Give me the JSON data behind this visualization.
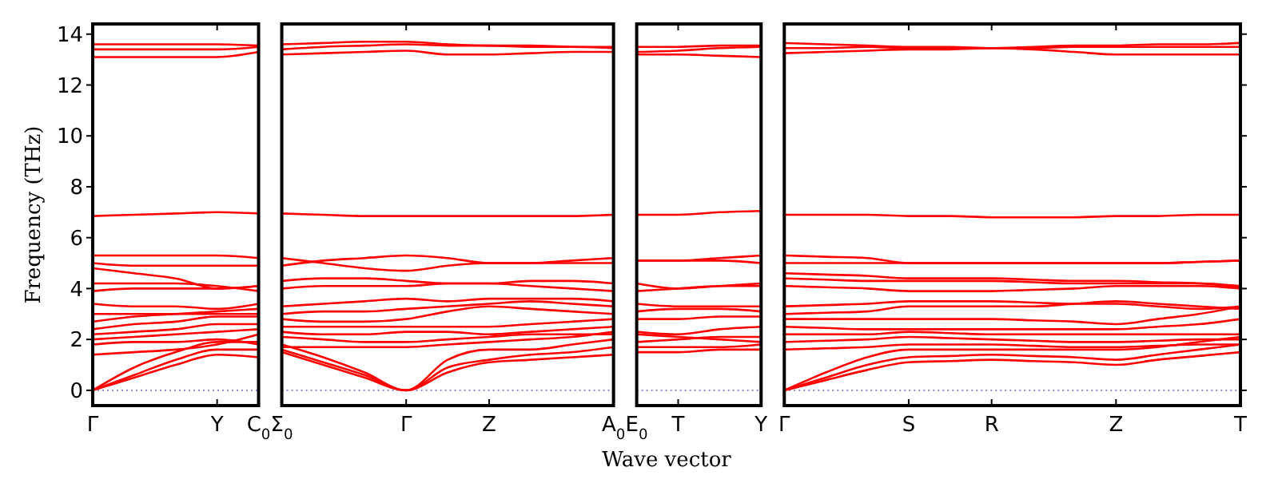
{
  "chart_data": [
    {
      "type": "line",
      "ylabel": "Frequency (THz)",
      "categories": [
        "Γ",
        null,
        null,
        "Y",
        "C$_{0}$"
      ],
      "ylim": [
        -0.6,
        14.4
      ],
      "yticks": [
        0,
        2,
        4,
        6,
        8,
        10,
        12,
        14
      ],
      "ref_lines": [
        {
          "axis": "y",
          "value": 0,
          "color": "#7f7fbf",
          "line_style": "dotted"
        }
      ],
      "series": [
        {
          "color": "#ff0000",
          "values": [
            0,
            0.5,
            1.0,
            1.4,
            1.3
          ]
        },
        {
          "color": "#ff0000",
          "values": [
            0,
            0.6,
            1.2,
            1.6,
            1.6
          ]
        },
        {
          "color": "#ff0000",
          "values": [
            0,
            0.9,
            1.5,
            1.9,
            1.9
          ]
        },
        {
          "color": "#ff0000",
          "values": [
            1.4,
            1.5,
            1.6,
            1.8,
            2.2
          ]
        },
        {
          "color": "#ff0000",
          "values": [
            1.8,
            1.9,
            1.9,
            2.0,
            1.8
          ]
        },
        {
          "color": "#ff0000",
          "values": [
            2.0,
            2.1,
            2.2,
            2.3,
            2.4
          ]
        },
        {
          "color": "#ff0000",
          "values": [
            2.2,
            2.3,
            2.4,
            2.6,
            2.6
          ]
        },
        {
          "color": "#ff0000",
          "values": [
            2.4,
            2.6,
            2.7,
            2.9,
            2.9
          ]
        },
        {
          "color": "#ff0000",
          "values": [
            2.7,
            2.9,
            3.0,
            3.1,
            3.2
          ]
        },
        {
          "color": "#ff0000",
          "values": [
            3.0,
            3.0,
            3.0,
            3.0,
            3.0
          ]
        },
        {
          "color": "#ff0000",
          "values": [
            3.4,
            3.3,
            3.3,
            3.2,
            3.4
          ]
        },
        {
          "color": "#ff0000",
          "values": [
            3.9,
            4.0,
            4.0,
            4.0,
            4.1
          ]
        },
        {
          "color": "#ff0000",
          "values": [
            4.2,
            4.2,
            4.2,
            4.1,
            3.9
          ]
        },
        {
          "color": "#ff0000",
          "values": [
            4.8,
            4.6,
            4.4,
            4.0,
            4.1
          ]
        },
        {
          "color": "#ff0000",
          "values": [
            5.0,
            4.9,
            4.9,
            4.9,
            4.9
          ]
        },
        {
          "color": "#ff0000",
          "values": [
            5.3,
            5.3,
            5.3,
            5.3,
            5.2
          ]
        },
        {
          "color": "#ff0000",
          "values": [
            6.85,
            6.9,
            6.95,
            7.0,
            6.95
          ]
        },
        {
          "color": "#ff0000",
          "values": [
            13.1,
            13.1,
            13.1,
            13.1,
            13.3
          ]
        },
        {
          "color": "#ff0000",
          "values": [
            13.4,
            13.4,
            13.4,
            13.4,
            13.5
          ]
        },
        {
          "color": "#ff0000",
          "values": [
            13.6,
            13.6,
            13.6,
            13.6,
            13.55
          ]
        }
      ]
    },
    {
      "type": "line",
      "xlabel": "Wave vector",
      "tick_labels": "x",
      "categories": [
        "Σ$_{0}$",
        null,
        null,
        "Γ",
        null,
        "Z",
        null,
        null,
        "A$_{0}$"
      ],
      "ylim": [
        -0.6,
        14.4
      ],
      "ref_lines": [
        {
          "axis": "y",
          "value": 0,
          "color": "#7f7fbf",
          "line_style": "dotted"
        }
      ],
      "series": [
        {
          "color": "#ff0000",
          "values": [
            1.5,
            1.0,
            0.5,
            0,
            0.7,
            1.1,
            1.2,
            1.3,
            1.4
          ]
        },
        {
          "color": "#ff0000",
          "values": [
            1.6,
            1.1,
            0.6,
            0,
            0.9,
            1.2,
            1.4,
            1.5,
            1.7
          ]
        },
        {
          "color": "#ff0000",
          "values": [
            1.8,
            1.3,
            0.7,
            0,
            1.2,
            1.6,
            1.6,
            1.8,
            2.0
          ]
        },
        {
          "color": "#ff0000",
          "values": [
            1.7,
            1.7,
            1.7,
            1.7,
            1.8,
            1.9,
            2.0,
            2.1,
            2.3
          ]
        },
        {
          "color": "#ff0000",
          "values": [
            2.1,
            2.0,
            1.9,
            1.9,
            2.0,
            2.1,
            2.2,
            2.2,
            2.2
          ]
        },
        {
          "color": "#ff0000",
          "values": [
            2.3,
            2.2,
            2.2,
            2.3,
            2.3,
            2.2,
            2.3,
            2.4,
            2.5
          ]
        },
        {
          "color": "#ff0000",
          "values": [
            2.5,
            2.5,
            2.5,
            2.5,
            2.5,
            2.5,
            2.6,
            2.7,
            2.8
          ]
        },
        {
          "color": "#ff0000",
          "values": [
            2.8,
            2.7,
            2.7,
            2.8,
            3.1,
            3.3,
            3.2,
            3.1,
            3.0
          ]
        },
        {
          "color": "#ff0000",
          "values": [
            3.0,
            3.1,
            3.1,
            3.2,
            3.3,
            3.4,
            3.5,
            3.4,
            3.3
          ]
        },
        {
          "color": "#ff0000",
          "values": [
            3.3,
            3.4,
            3.5,
            3.6,
            3.5,
            3.6,
            3.6,
            3.6,
            3.5
          ]
        },
        {
          "color": "#ff0000",
          "values": [
            4.0,
            4.1,
            4.1,
            4.1,
            4.2,
            4.2,
            4.1,
            4.0,
            3.9
          ]
        },
        {
          "color": "#ff0000",
          "values": [
            4.3,
            4.4,
            4.4,
            4.3,
            4.2,
            4.2,
            4.3,
            4.3,
            4.2
          ]
        },
        {
          "color": "#ff0000",
          "values": [
            5.2,
            5.0,
            4.8,
            4.7,
            4.9,
            5.0,
            5.0,
            5.0,
            5.0
          ]
        },
        {
          "color": "#ff0000",
          "values": [
            4.9,
            5.1,
            5.2,
            5.3,
            5.2,
            5.0,
            5.0,
            5.1,
            5.2
          ]
        },
        {
          "color": "#ff0000",
          "values": [
            6.95,
            6.9,
            6.85,
            6.85,
            6.85,
            6.85,
            6.85,
            6.85,
            6.9
          ]
        },
        {
          "color": "#ff0000",
          "values": [
            13.2,
            13.25,
            13.3,
            13.35,
            13.2,
            13.2,
            13.25,
            13.3,
            13.3
          ]
        },
        {
          "color": "#ff0000",
          "values": [
            13.4,
            13.5,
            13.55,
            13.6,
            13.55,
            13.55,
            13.5,
            13.5,
            13.45
          ]
        },
        {
          "color": "#ff0000",
          "values": [
            13.6,
            13.65,
            13.7,
            13.7,
            13.6,
            13.55,
            13.55,
            13.5,
            13.5
          ]
        }
      ]
    },
    {
      "type": "line",
      "tick_labels": "x",
      "categories": [
        "E$_{0}$",
        "T",
        null,
        "Y"
      ],
      "ylim": [
        -0.6,
        14.4
      ],
      "ref_lines": [
        {
          "axis": "y",
          "value": 0,
          "color": "#7f7fbf",
          "line_style": "dotted"
        }
      ],
      "series": [
        {
          "color": "#ff0000",
          "values": [
            1.5,
            1.5,
            1.6,
            1.6
          ]
        },
        {
          "color": "#ff0000",
          "values": [
            1.7,
            1.7,
            1.7,
            1.8
          ]
        },
        {
          "color": "#ff0000",
          "values": [
            1.9,
            2.0,
            2.1,
            2.1
          ]
        },
        {
          "color": "#ff0000",
          "values": [
            2.2,
            2.1,
            2.0,
            1.9
          ]
        },
        {
          "color": "#ff0000",
          "values": [
            2.3,
            2.2,
            2.4,
            2.5
          ]
        },
        {
          "color": "#ff0000",
          "values": [
            2.8,
            2.8,
            2.9,
            2.9
          ]
        },
        {
          "color": "#ff0000",
          "values": [
            3.1,
            3.2,
            3.2,
            3.1
          ]
        },
        {
          "color": "#ff0000",
          "values": [
            3.4,
            3.3,
            3.3,
            3.3
          ]
        },
        {
          "color": "#ff0000",
          "values": [
            3.9,
            4.0,
            4.1,
            4.1
          ]
        },
        {
          "color": "#ff0000",
          "values": [
            4.2,
            4.0,
            4.1,
            4.2
          ]
        },
        {
          "color": "#ff0000",
          "values": [
            5.1,
            5.1,
            5.1,
            5.0
          ]
        },
        {
          "color": "#ff0000",
          "values": [
            5.1,
            5.1,
            5.2,
            5.3
          ]
        },
        {
          "color": "#ff0000",
          "values": [
            6.9,
            6.9,
            7.0,
            7.05
          ]
        },
        {
          "color": "#ff0000",
          "values": [
            13.2,
            13.2,
            13.15,
            13.1
          ]
        },
        {
          "color": "#ff0000",
          "values": [
            13.3,
            13.35,
            13.45,
            13.5
          ]
        },
        {
          "color": "#ff0000",
          "values": [
            13.5,
            13.5,
            13.55,
            13.55
          ]
        }
      ]
    },
    {
      "type": "line",
      "tick_labels": "x",
      "categories": [
        "Γ",
        null,
        null,
        "S",
        null,
        "R",
        null,
        null,
        "Z",
        null,
        null,
        "T"
      ],
      "ylim": [
        -0.6,
        14.4
      ],
      "yticks": [
        {
          "value": 0,
          "label": null
        },
        {
          "value": 2,
          "label": null
        },
        {
          "value": 4,
          "label": null
        },
        {
          "value": 6,
          "label": null
        },
        {
          "value": 8,
          "label": null
        },
        {
          "value": 10,
          "label": null
        },
        {
          "value": 12,
          "label": null
        },
        {
          "value": 14,
          "label": null
        }
      ],
      "ref_lines": [
        {
          "axis": "y",
          "value": 0,
          "color": "#7f7fbf",
          "line_style": "dotted"
        }
      ],
      "series": [
        {
          "color": "#ff0000",
          "values": [
            0,
            0.4,
            0.8,
            1.1,
            1.15,
            1.2,
            1.15,
            1.1,
            1.0,
            1.2,
            1.35,
            1.5
          ]
        },
        {
          "color": "#ff0000",
          "values": [
            0,
            0.5,
            1.0,
            1.3,
            1.35,
            1.4,
            1.35,
            1.3,
            1.2,
            1.4,
            1.6,
            1.8
          ]
        },
        {
          "color": "#ff0000",
          "values": [
            0,
            0.7,
            1.3,
            1.6,
            1.6,
            1.6,
            1.6,
            1.6,
            1.6,
            1.7,
            1.9,
            2.1
          ]
        },
        {
          "color": "#ff0000",
          "values": [
            1.6,
            1.65,
            1.7,
            1.8,
            1.8,
            1.8,
            1.75,
            1.7,
            1.7,
            1.75,
            1.8,
            1.8
          ]
        },
        {
          "color": "#ff0000",
          "values": [
            1.9,
            1.95,
            2.0,
            2.1,
            2.05,
            2.0,
            1.95,
            1.9,
            1.9,
            1.95,
            2.0,
            2.0
          ]
        },
        {
          "color": "#ff0000",
          "values": [
            2.2,
            2.2,
            2.2,
            2.3,
            2.25,
            2.2,
            2.2,
            2.2,
            2.2,
            2.2,
            2.2,
            2.2
          ]
        },
        {
          "color": "#ff0000",
          "values": [
            2.5,
            2.45,
            2.4,
            2.4,
            2.4,
            2.4,
            2.4,
            2.4,
            2.4,
            2.5,
            2.6,
            2.8
          ]
        },
        {
          "color": "#ff0000",
          "values": [
            2.8,
            2.8,
            2.8,
            2.8,
            2.8,
            2.8,
            2.75,
            2.7,
            2.6,
            2.8,
            3.0,
            3.3
          ]
        },
        {
          "color": "#ff0000",
          "values": [
            3.0,
            3.05,
            3.1,
            3.3,
            3.3,
            3.3,
            3.3,
            3.4,
            3.5,
            3.4,
            3.3,
            3.2
          ]
        },
        {
          "color": "#ff0000",
          "values": [
            3.3,
            3.35,
            3.4,
            3.5,
            3.5,
            3.5,
            3.45,
            3.4,
            3.4,
            3.3,
            3.2,
            3.3
          ]
        },
        {
          "color": "#ff0000",
          "values": [
            4.1,
            4.05,
            4.0,
            3.9,
            3.9,
            3.9,
            3.95,
            4.0,
            4.1,
            4.1,
            4.1,
            4.0
          ]
        },
        {
          "color": "#ff0000",
          "values": [
            4.4,
            4.35,
            4.3,
            4.3,
            4.3,
            4.3,
            4.25,
            4.2,
            4.2,
            4.2,
            4.2,
            4.1
          ]
        },
        {
          "color": "#ff0000",
          "values": [
            4.6,
            4.55,
            4.5,
            4.4,
            4.4,
            4.4,
            4.35,
            4.3,
            4.3,
            4.25,
            4.2,
            4.05
          ]
        },
        {
          "color": "#ff0000",
          "values": [
            5.0,
            5.0,
            5.0,
            5.0,
            5.0,
            5.0,
            5.0,
            5.0,
            5.0,
            5.0,
            5.05,
            5.1
          ]
        },
        {
          "color": "#ff0000",
          "values": [
            5.3,
            5.25,
            5.2,
            5.0,
            5.0,
            5.0,
            5.0,
            5.0,
            5.0,
            5.0,
            5.05,
            5.1
          ]
        },
        {
          "color": "#ff0000",
          "values": [
            6.9,
            6.9,
            6.9,
            6.85,
            6.85,
            6.8,
            6.8,
            6.8,
            6.85,
            6.85,
            6.9,
            6.9
          ]
        },
        {
          "color": "#ff0000",
          "values": [
            13.25,
            13.3,
            13.35,
            13.4,
            13.4,
            13.45,
            13.4,
            13.3,
            13.2,
            13.2,
            13.2,
            13.2
          ]
        },
        {
          "color": "#ff0000",
          "values": [
            13.45,
            13.45,
            13.5,
            13.45,
            13.45,
            13.45,
            13.45,
            13.5,
            13.5,
            13.5,
            13.5,
            13.5
          ]
        },
        {
          "color": "#ff0000",
          "values": [
            13.65,
            13.6,
            13.55,
            13.5,
            13.5,
            13.45,
            13.5,
            13.55,
            13.55,
            13.6,
            13.6,
            13.65
          ]
        }
      ]
    }
  ]
}
